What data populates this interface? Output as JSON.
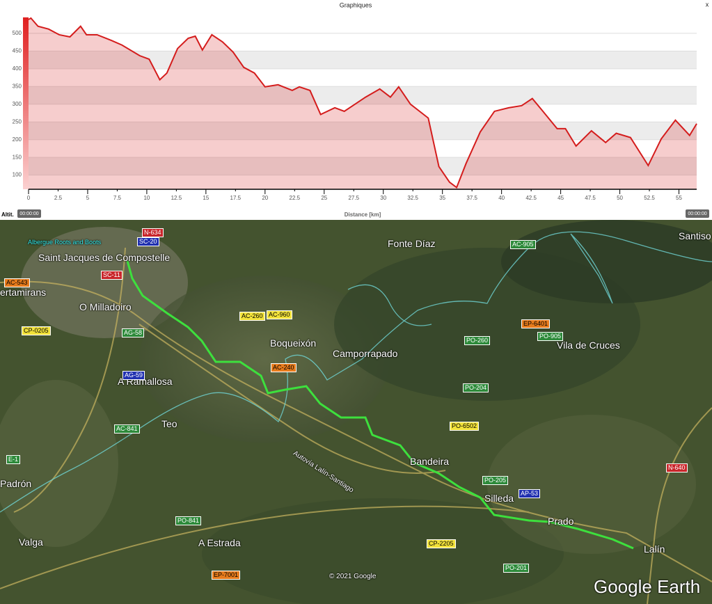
{
  "window": {
    "title": "Graphiques",
    "close": "x",
    "time_start": "00:00:00",
    "time_end": "00:00:00"
  },
  "chart_data": {
    "type": "area",
    "y_label": "Altit.",
    "x_label": "Distance [km]",
    "x": [
      0,
      0.2,
      0.8,
      1.7,
      2.6,
      3.5,
      4.4,
      4.9,
      5.8,
      7.0,
      7.9,
      9.4,
      10.2,
      11.1,
      11.7,
      12.6,
      13.5,
      14.1,
      14.7,
      15.5,
      16.4,
      17.3,
      18.2,
      19.1,
      20.0,
      21.1,
      22.3,
      22.9,
      23.8,
      24.7,
      25.9,
      26.7,
      27.6,
      28.5,
      29.7,
      30.6,
      31.3,
      32.3,
      33.8,
      34.7,
      35.6,
      36.2,
      37.0,
      38.2,
      39.4,
      40.6,
      41.7,
      42.6,
      43.5,
      44.7,
      45.4,
      46.3,
      47.6,
      48.8,
      49.7,
      50.9,
      52.4,
      53.5,
      54.7,
      55.9,
      56.5
    ],
    "values": [
      539,
      543,
      520,
      512,
      496,
      490,
      520,
      496,
      496,
      480,
      467,
      437,
      427,
      369,
      388,
      457,
      486,
      492,
      453,
      496,
      476,
      447,
      404,
      388,
      349,
      355,
      339,
      349,
      339,
      271,
      290,
      280,
      300,
      320,
      343,
      320,
      349,
      300,
      261,
      124,
      80,
      65,
      133,
      222,
      280,
      290,
      296,
      316,
      280,
      231,
      231,
      182,
      225,
      192,
      218,
      206,
      127,
      202,
      255,
      212,
      245
    ],
    "color": "#d41c1c",
    "xlim": [
      0,
      56.5
    ],
    "xticks": [
      0,
      2.5,
      5,
      7.5,
      10,
      12.5,
      15,
      17.5,
      20,
      22.5,
      25,
      27.5,
      30,
      32.5,
      35,
      37.5,
      40,
      42.5,
      45,
      47.5,
      50,
      52.5,
      55
    ],
    "ylim": [
      60,
      545
    ],
    "yticks": [
      100,
      150,
      200,
      250,
      300,
      350,
      400,
      450,
      500
    ],
    "grid": true
  },
  "map": {
    "labels": [
      "Albergue Roots and Boots",
      "Saint Jacques de Compostelle",
      "Fonte Díaz",
      "Santiso",
      "ertamirans",
      "O Milladoiro",
      "Boqueixón",
      "Camporrapado",
      "Vila de Cruces",
      "A Ramallosa",
      "Teo",
      "Bandeira",
      "Padrón",
      "Silleda",
      "Prado",
      "Lalín",
      "Valga",
      "A Estrada",
      "Autovía Lalín-Santiago"
    ],
    "roads": [
      "N-634",
      "SC-20",
      "SC-11",
      "AC-543",
      "CP-0205",
      "AG-58",
      "AC-260",
      "AC-960",
      "AC-240",
      "AG-59",
      "AC-841",
      "E-1",
      "EP-6401",
      "PO-260",
      "PO-905",
      "PO-204",
      "PO-6502",
      "PO-205",
      "AP-53",
      "PO-841",
      "CP-2205",
      "EP-7001",
      "PO-201",
      "N-640",
      "AC-905"
    ],
    "copyright": "© 2021 Google",
    "brand": "Google Earth"
  }
}
